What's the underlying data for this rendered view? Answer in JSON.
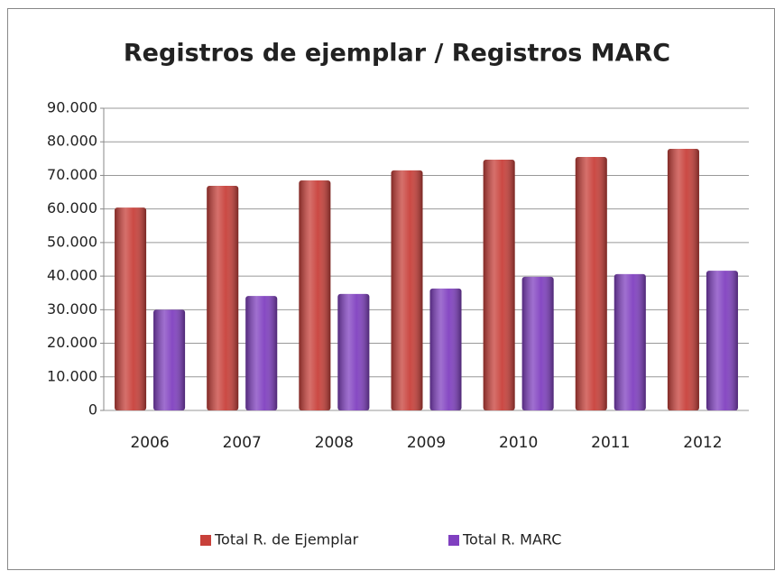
{
  "chart_data": {
    "type": "bar",
    "title": "Registros de ejemplar / Registros MARC",
    "categories": [
      "2006",
      "2007",
      "2008",
      "2009",
      "2010",
      "2011",
      "2012"
    ],
    "series": [
      {
        "name": "Total R. de Ejemplar",
        "color": "#c8403a",
        "values": [
          60400,
          66900,
          68500,
          71500,
          74700,
          75500,
          77900
        ]
      },
      {
        "name": "Total R. MARC",
        "color": "#8040c0",
        "values": [
          30000,
          34100,
          34700,
          36300,
          39800,
          40600,
          41600
        ]
      }
    ],
    "ylim": [
      0,
      90000
    ],
    "yticks": [
      0,
      {
        "value": 10000,
        "label": "10.000"
      },
      {
        "value": 20000,
        "label": "20.000"
      },
      {
        "value": 30000,
        "label": "30.000"
      },
      {
        "value": 40000,
        "label": "40.000"
      },
      {
        "value": 50000,
        "label": "50.000"
      },
      {
        "value": 60000,
        "label": "60.000"
      },
      {
        "value": 70000,
        "label": "70.000"
      },
      {
        "value": 80000,
        "label": "80.000"
      },
      {
        "value": 90000,
        "label": "90.000"
      }
    ],
    "grid": true,
    "legend": "bottom"
  }
}
